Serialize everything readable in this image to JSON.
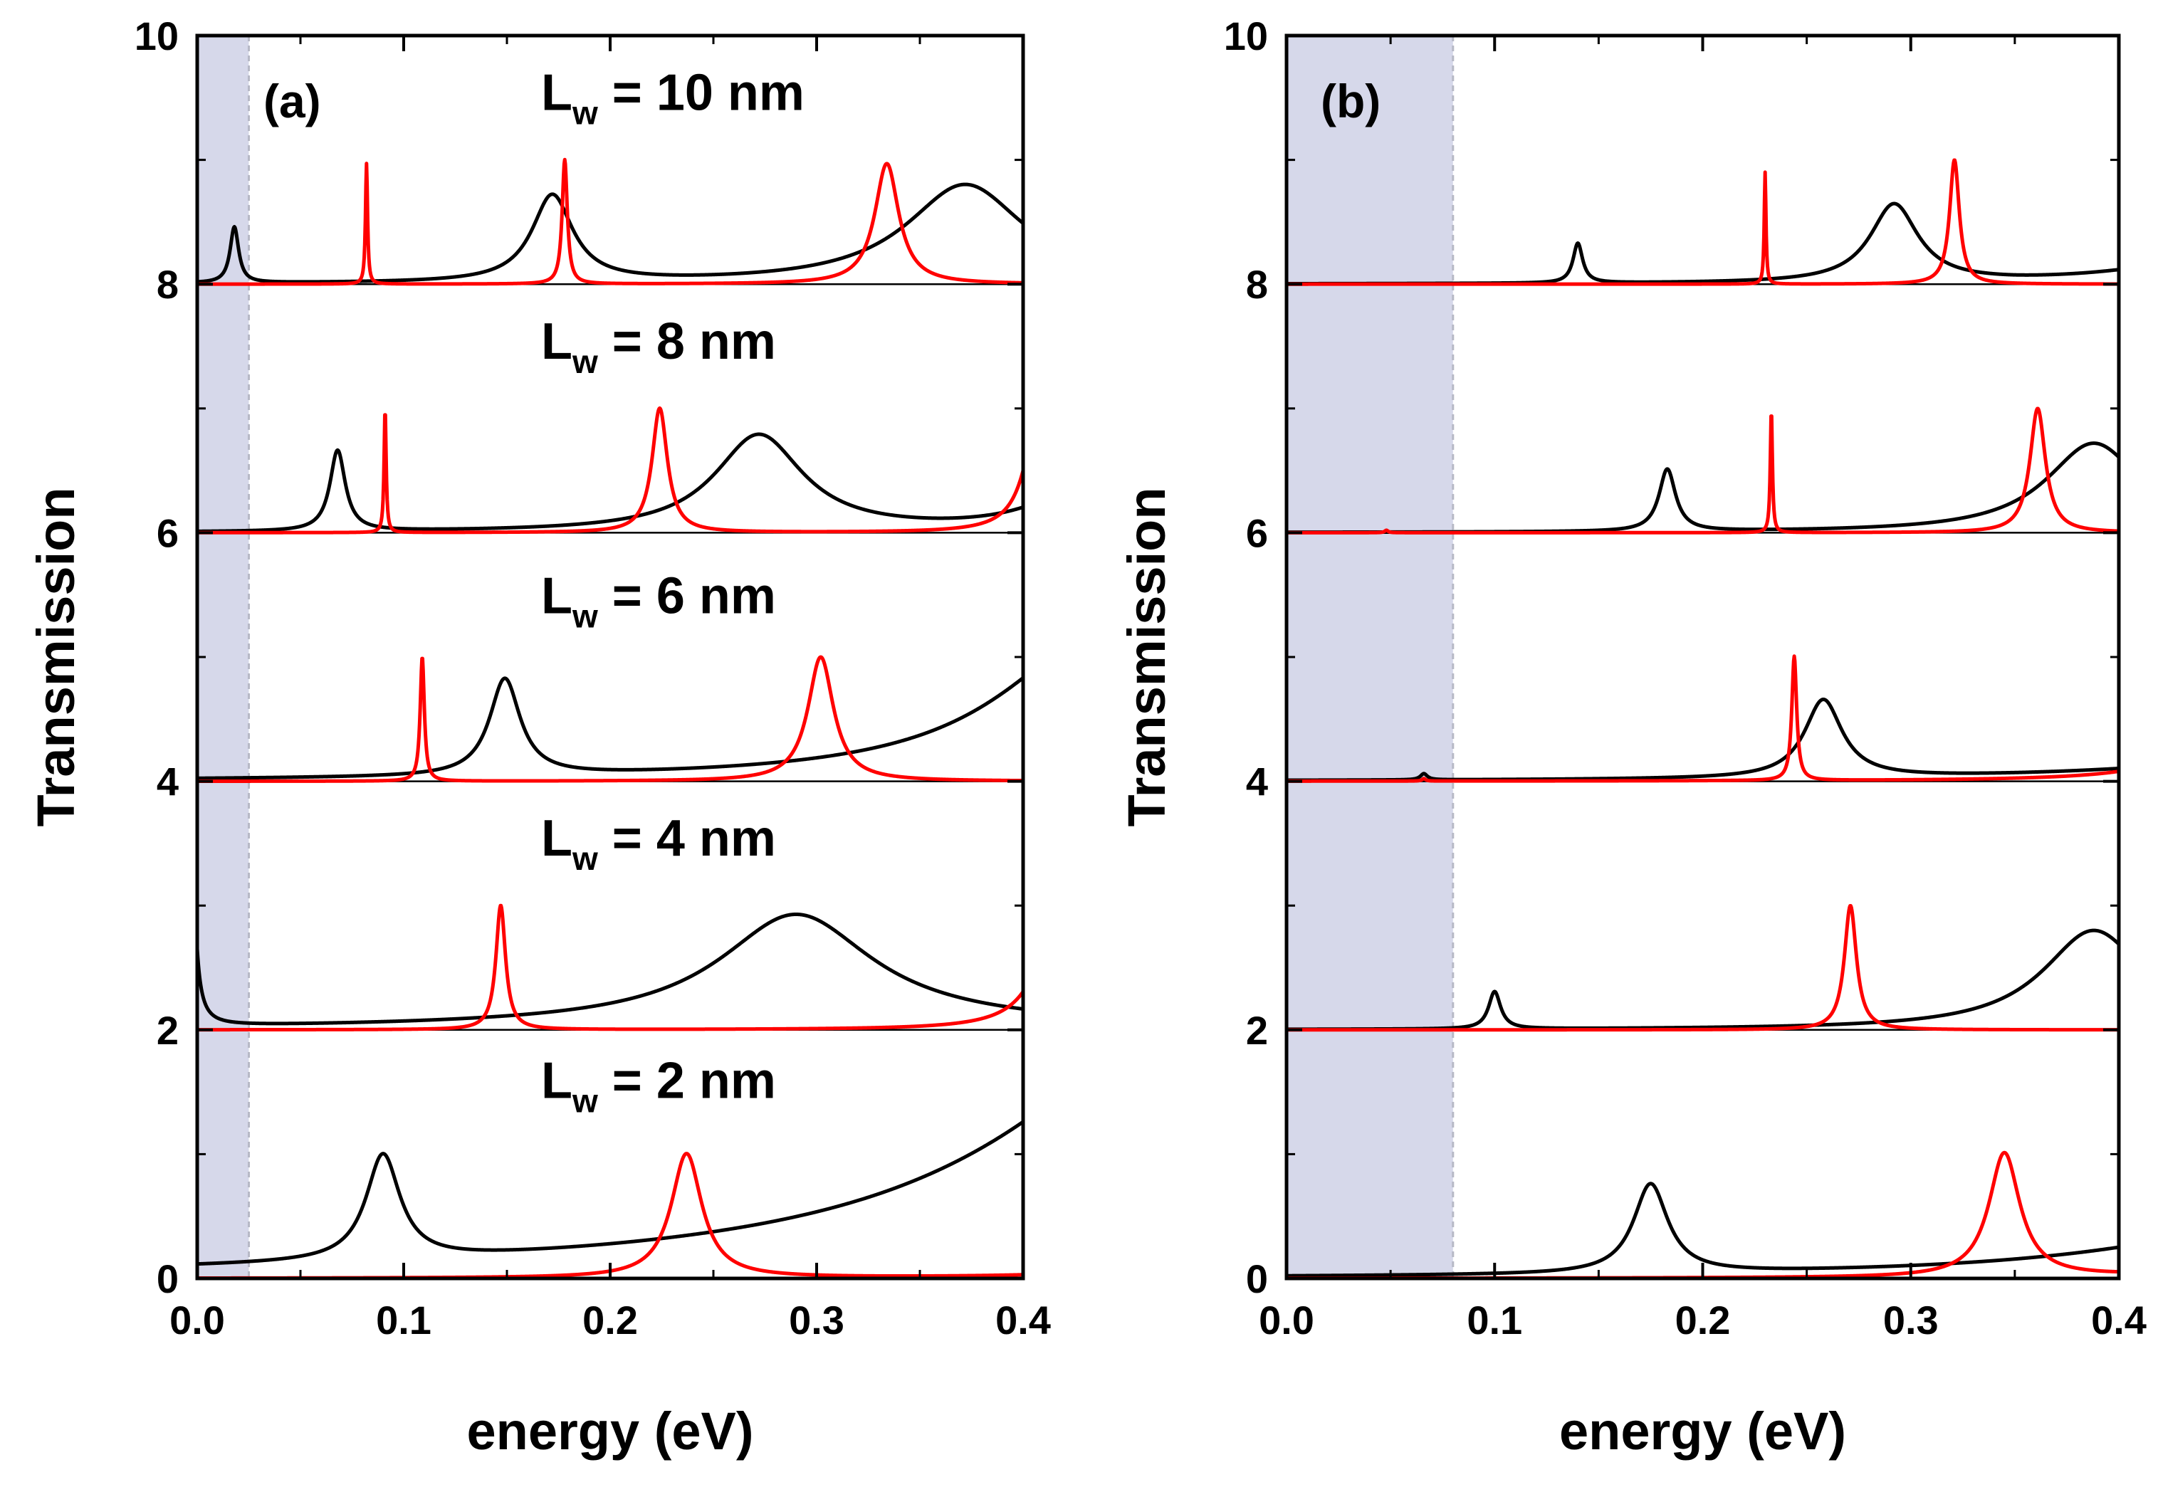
{
  "chart_data": [
    {
      "panel": "(a)",
      "type": "line",
      "xlabel": "energy (eV)",
      "ylabel": "Transmission",
      "xlim": [
        0.0,
        0.4
      ],
      "ylim": [
        0,
        10
      ],
      "xticks": [
        "0.0",
        "0.1",
        "0.2",
        "0.3",
        "0.4"
      ],
      "yticks": [
        "0",
        "2",
        "4",
        "6",
        "8",
        "10"
      ],
      "shaded_region": [
        0.0,
        0.025
      ],
      "curve_labels": [
        {
          "main": "L",
          "sub": "w",
          "rest": " = 10 nm",
          "y": 9.55
        },
        {
          "main": "L",
          "sub": "w",
          "rest": " = 8 nm",
          "y": 7.55
        },
        {
          "main": "L",
          "sub": "w",
          "rest": " = 6 nm",
          "y": 5.5
        },
        {
          "main": "L",
          "sub": "w",
          "rest": " = 4 nm",
          "y": 3.55
        },
        {
          "main": "L",
          "sub": "w",
          "rest": " = 2 nm",
          "y": 1.6
        }
      ],
      "series": [
        {
          "name": "Lw = 10 nm black",
          "color": "#000000",
          "offset": 8,
          "base_slope": [
            0.0,
            0.0
          ],
          "peaks": [
            [
              0.018,
              0.45,
              0.0025
            ],
            [
              0.172,
              0.7,
              0.012
            ],
            [
              0.372,
              0.8,
              0.035
            ]
          ]
        },
        {
          "name": "Lw = 10 nm red",
          "color": "#ff0000",
          "offset": 8,
          "base_slope": [
            0.0,
            0.0
          ],
          "peaks": [
            [
              0.082,
              0.97,
              0.0006
            ],
            [
              0.178,
              1.0,
              0.0015
            ],
            [
              0.334,
              0.97,
              0.007
            ]
          ]
        },
        {
          "name": "Lw = 8 nm black",
          "color": "#000000",
          "offset": 6,
          "base_slope": [
            0.0,
            0.0
          ],
          "peaks": [
            [
              0.068,
              0.65,
              0.0045
            ],
            [
              0.272,
              0.78,
              0.026
            ],
            [
              0.43,
              0.35,
              0.03
            ]
          ]
        },
        {
          "name": "Lw = 8 nm red",
          "color": "#ff0000",
          "offset": 6,
          "base_slope": [
            0.0,
            0.0
          ],
          "peaks": [
            [
              0.091,
              1.0,
              0.0006
            ],
            [
              0.224,
              1.0,
              0.0045
            ],
            [
              0.408,
              1.0,
              0.008
            ]
          ]
        },
        {
          "name": "Lw = 6 nm black",
          "color": "#000000",
          "offset": 4,
          "base_slope": [
            0.0,
            0.0
          ],
          "peaks": [
            [
              0.149,
              0.78,
              0.009
            ],
            [
              0.44,
              1.2,
              0.06
            ]
          ]
        },
        {
          "name": "Lw = 6 nm red",
          "color": "#ff0000",
          "offset": 4,
          "base_slope": [
            0.0,
            0.0
          ],
          "peaks": [
            [
              0.109,
              1.0,
              0.0012
            ],
            [
              0.302,
              1.0,
              0.0075
            ]
          ]
        },
        {
          "name": "Lw = 4 nm black",
          "color": "#000000",
          "offset": 2,
          "base_slope": [
            0.0,
            0.0
          ],
          "peaks": [
            [
              -0.004,
              5.0,
              0.0015
            ],
            [
              0.29,
              0.88,
              0.045
            ],
            [
              0.31,
              0.05,
              0.2
            ]
          ]
        },
        {
          "name": "Lw = 4 nm red",
          "color": "#ff0000",
          "offset": 2,
          "base_slope": [
            0.0,
            0.0
          ],
          "peaks": [
            [
              0.147,
              1.0,
              0.0028
            ],
            [
              0.418,
              1.0,
              0.012
            ]
          ]
        },
        {
          "name": "Lw = 2 nm black",
          "color": "#000000",
          "offset": 0,
          "base_slope": [
            0.0,
            0.0
          ],
          "peaks": [
            [
              0.09,
              0.85,
              0.01
            ],
            [
              0.5,
              2.3,
              0.11
            ]
          ]
        },
        {
          "name": "Lw = 2 nm red",
          "color": "#ff0000",
          "offset": 0,
          "base_slope": [
            0.0,
            0.0
          ],
          "peaks": [
            [
              0.237,
              1.0,
              0.009
            ],
            [
              0.52,
              1.0,
              0.02
            ]
          ]
        }
      ]
    },
    {
      "panel": "(b)",
      "type": "line",
      "xlabel": "energy (eV)",
      "ylabel": "Transmission",
      "xlim": [
        0.0,
        0.4
      ],
      "ylim": [
        0,
        10
      ],
      "xticks": [
        "0.0",
        "0.1",
        "0.2",
        "0.3",
        "0.4"
      ],
      "yticks": [
        "0",
        "2",
        "4",
        "6",
        "8",
        "10"
      ],
      "shaded_region": [
        0.0,
        0.08
      ],
      "curve_labels": [],
      "series": [
        {
          "name": "Lw = 10 nm black",
          "color": "#000000",
          "offset": 8,
          "base_slope": [
            0.14,
            0.0
          ],
          "peaks": [
            [
              0.14,
              0.32,
              0.0028
            ],
            [
              0.292,
              0.63,
              0.014
            ],
            [
              0.45,
              0.2,
              0.05
            ]
          ]
        },
        {
          "name": "Lw = 10 nm red",
          "color": "#ff0000",
          "offset": 8,
          "base_slope": [
            0.0,
            0.0
          ],
          "peaks": [
            [
              0.23,
              0.9,
              0.0005
            ],
            [
              0.321,
              1.0,
              0.0028
            ]
          ]
        },
        {
          "name": "Lw = 8 nm black",
          "color": "#000000",
          "offset": 6,
          "base_slope": [
            0.0,
            0.0
          ],
          "peaks": [
            [
              0.183,
              0.5,
              0.0048
            ],
            [
              0.388,
              0.72,
              0.028
            ]
          ]
        },
        {
          "name": "Lw = 8 nm red",
          "color": "#ff0000",
          "offset": 6,
          "base_slope": [
            0.0,
            0.0
          ],
          "peaks": [
            [
              0.048,
              0.02,
              0.001
            ],
            [
              0.233,
              0.99,
              0.0006
            ],
            [
              0.361,
              1.0,
              0.0045
            ]
          ]
        },
        {
          "name": "Lw = 6 nm black",
          "color": "#000000",
          "offset": 4,
          "base_slope": [
            0.0,
            0.0
          ],
          "peaks": [
            [
              0.066,
              0.05,
              0.002
            ],
            [
              0.258,
              0.63,
              0.011
            ],
            [
              0.5,
              0.2,
              0.1
            ]
          ]
        },
        {
          "name": "Lw = 6 nm red",
          "color": "#ff0000",
          "offset": 4,
          "base_slope": [
            0.0,
            0.0
          ],
          "peaks": [
            [
              0.066,
              0.02,
              0.001
            ],
            [
              0.244,
              1.0,
              0.0014
            ],
            [
              0.46,
              0.8,
              0.02
            ]
          ]
        },
        {
          "name": "Lw = 4 nm black",
          "color": "#000000",
          "offset": 2,
          "base_slope": [
            0.0,
            0.0
          ],
          "peaks": [
            [
              0.1,
              0.3,
              0.0035
            ],
            [
              0.388,
              0.8,
              0.03
            ]
          ]
        },
        {
          "name": "Lw = 4 nm red",
          "color": "#ff0000",
          "offset": 2,
          "base_slope": [
            0.0,
            0.0
          ],
          "peaks": [
            [
              0.271,
              1.0,
              0.0035
            ]
          ]
        },
        {
          "name": "Lw = 2 nm black",
          "color": "#000000",
          "offset": 0,
          "base_slope": [
            0.0,
            0.0
          ],
          "peaks": [
            [
              0.175,
              0.72,
              0.01
            ],
            [
              0.5,
              0.5,
              0.1
            ]
          ]
        },
        {
          "name": "Lw = 2 nm red",
          "color": "#ff0000",
          "offset": 0,
          "base_slope": [
            0.0,
            0.0
          ],
          "peaks": [
            [
              0.345,
              1.0,
              0.009
            ],
            [
              0.5,
              0.2,
              0.04
            ]
          ]
        }
      ]
    }
  ],
  "colors": {
    "shade": "#d6d8ea",
    "shade_edge": "#b7b9c6",
    "black": "#000000",
    "red": "#ff0000"
  }
}
